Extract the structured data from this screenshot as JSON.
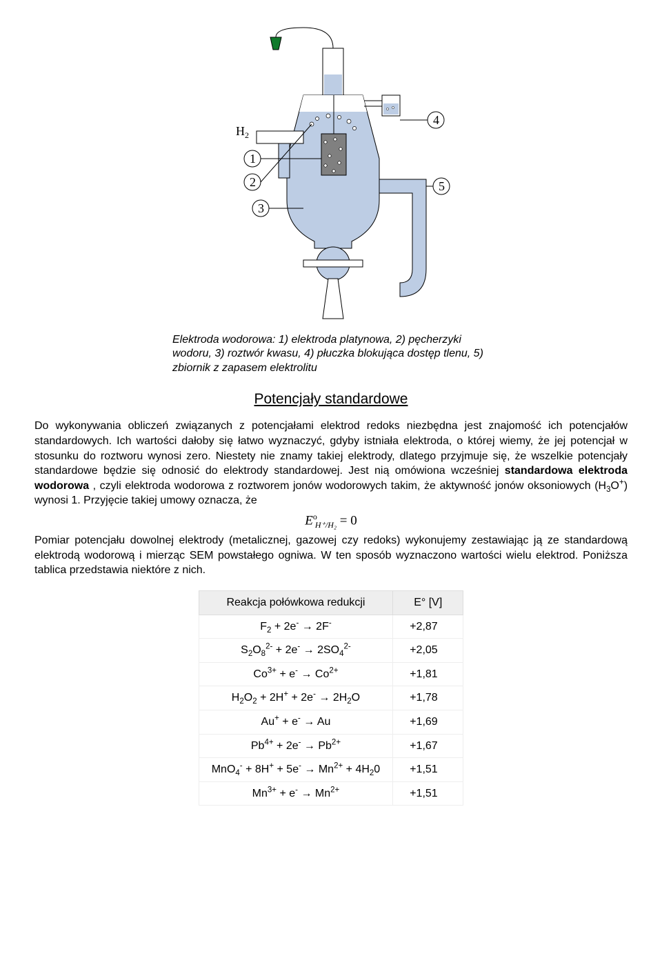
{
  "diagram": {
    "labels": {
      "H2": "H",
      "H2_sub": "2",
      "n1": "1",
      "n2": "2",
      "n3": "3",
      "n4": "4",
      "n5": "5"
    },
    "colors": {
      "fill": "#bdcde4",
      "stroke": "#000000",
      "inner": "#808080",
      "plug": "#0f7a2b"
    }
  },
  "caption": "Elektroda wodorowa: 1) elektroda platynowa, 2) pęcherzyki wodoru, 3) roztwór kwasu, 4) płuczka blokująca dostęp tlenu, 5) zbiornik z zapasem elektrolitu",
  "heading": "Potencjały standardowe",
  "paragraph1": "Do wykonywania obliczeń związanych z potencjałami elektrod redoks niezbędna jest znajomość ich potencjałów standardowych. Ich wartości dałoby się łatwo wyznaczyć, gdyby istniała elektroda, o której wiemy, że jej potencjał w stosunku do roztworu wynosi zero. Niestety nie znamy takiej elektrody, dlatego przyjmuje się, że wszelkie potencjały standardowe będzie się odnosić do elektrody standardowej. Jest nią omówiona wcześniej ",
  "p1_bold": "standardowa elektroda wodorowa",
  "p1_tail_a": ", czyli elektroda wodorowa z roztworem jonów wodorowych takim, że aktywność jonów oksoniowych (H",
  "p1_ox_sub": "3",
  "p1_ox_mid": "O",
  "p1_ox_sup": "+",
  "p1_tail_b": ") wynosi 1. Przyjęcie takiej umowy oznacza, że",
  "equation": {
    "E": "E",
    "sup": "o",
    "sub": "H⁺/H₂",
    "rhs": "= 0"
  },
  "paragraph2": "Pomiar potencjału dowolnej elektrody (metalicznej, gazowej czy redoks) wykonujemy zestawiając ją ze standardową elektrodą wodorową i mierząc SEM powstałego ogniwa. W ten sposób wyznaczono wartości wielu elektrod. Poniższa tablica przedstawia niektóre z nich.",
  "table": {
    "head_reaction": "Reakcja połówkowa redukcji",
    "head_value": "E° [V]",
    "rows": [
      {
        "rxn": "F<sub>2</sub> + 2e<sup>-</sup> → 2F<sup>-</sup>",
        "val": "+2,87"
      },
      {
        "rxn": "S<sub>2</sub>O<sub>8</sub><sup>2-</sup> + 2e<sup>-</sup> → 2SO<sub>4</sub><sup>2-</sup>",
        "val": "+2,05"
      },
      {
        "rxn": "Co<sup>3+</sup> + e<sup>-</sup> → Co<sup>2+</sup>",
        "val": "+1,81"
      },
      {
        "rxn": "H<sub>2</sub>O<sub>2</sub> + 2H<sup>+</sup> + 2e<sup>-</sup> → 2H<sub>2</sub>O",
        "val": "+1,78"
      },
      {
        "rxn": "Au<sup>+</sup> + e<sup>-</sup> → Au",
        "val": "+1,69"
      },
      {
        "rxn": "Pb<sup>4+</sup> + 2e<sup>-</sup> → Pb<sup>2+</sup>",
        "val": "+1,67"
      },
      {
        "rxn": "MnO<sub>4</sub><sup>-</sup> + 8H<sup>+</sup> + 5e<sup>-</sup> → Mn<sup>2+</sup> + 4H<sub>2</sub>0",
        "val": "+1,51"
      },
      {
        "rxn": "Mn<sup>3+</sup> + e<sup>-</sup> → Mn<sup>2+</sup>",
        "val": "+1,51"
      }
    ]
  }
}
